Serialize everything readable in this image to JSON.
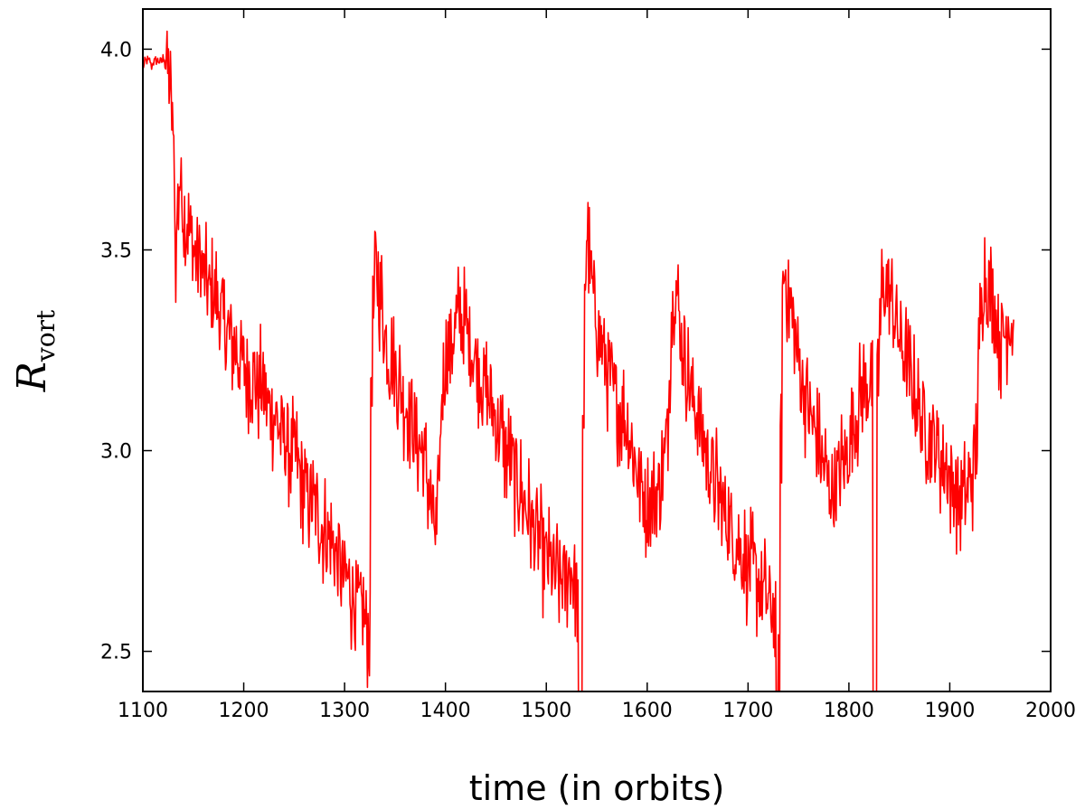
{
  "chart_data": {
    "type": "line",
    "title": "",
    "xlabel": "time (in orbits)",
    "ylabel": "R",
    "ylabel_subscript": "vort",
    "xlim": [
      1100,
      2000
    ],
    "ylim": [
      2.4,
      4.1
    ],
    "x_ticks": [
      1100,
      1200,
      1300,
      1400,
      1500,
      1600,
      1700,
      1800,
      1900,
      2000
    ],
    "x_tick_labels": [
      "1100",
      "1200",
      "1300",
      "1400",
      "1500",
      "1600",
      "1700",
      "1800",
      "1900",
      "2000"
    ],
    "y_ticks": [
      2.5,
      3.0,
      3.5,
      4.0
    ],
    "y_tick_labels": [
      "2.5",
      "3.0",
      "3.5",
      "4.0"
    ],
    "grid": false,
    "series": [
      {
        "color": "#ff0000",
        "x_start": 1100,
        "x_step": 2,
        "y_center": [
          3.96,
          3.97,
          3.97,
          3.97,
          3.96,
          3.97,
          3.97,
          3.97,
          3.97,
          3.97,
          3.98,
          3.99,
          3.95,
          3.92,
          3.86,
          3.72,
          3.5,
          3.6,
          3.68,
          3.64,
          3.6,
          3.56,
          3.58,
          3.54,
          3.52,
          3.5,
          3.49,
          3.49,
          3.48,
          3.45,
          3.43,
          3.41,
          3.4,
          3.39,
          3.39,
          3.39,
          3.38,
          3.36,
          3.35,
          3.33,
          3.31,
          3.3,
          3.29,
          3.28,
          3.27,
          3.25,
          3.25,
          3.24,
          3.23,
          3.22,
          3.22,
          3.2,
          3.2,
          3.2,
          3.19,
          3.18,
          3.16,
          3.16,
          3.16,
          3.15,
          3.14,
          3.13,
          3.11,
          3.1,
          3.1,
          3.09,
          3.08,
          3.06,
          3.05,
          3.04,
          3.03,
          3.03,
          3.01,
          3.0,
          2.99,
          2.98,
          2.97,
          2.95,
          2.94,
          2.92,
          2.9,
          2.89,
          2.88,
          2.87,
          2.86,
          2.85,
          2.84,
          2.83,
          2.82,
          2.81,
          2.8,
          2.79,
          2.78,
          2.77,
          2.76,
          2.74,
          2.73,
          2.72,
          2.71,
          2.69,
          2.68,
          2.68,
          2.66,
          2.65,
          2.64,
          2.63,
          2.62,
          2.6,
          2.6,
          2.59,
          2.57,
          2.56,
          2.55,
          3.2,
          3.35,
          3.45,
          3.45,
          3.4,
          3.37,
          3.33,
          3.28,
          3.25,
          3.23,
          3.22,
          3.2,
          3.19,
          3.17,
          3.16,
          3.15,
          3.13,
          3.12,
          3.11,
          3.09,
          3.08,
          3.06,
          3.04,
          3.03,
          3.01,
          3.0,
          2.98,
          2.95,
          2.92,
          2.89,
          2.85,
          2.82,
          2.78,
          2.84,
          3.0,
          3.15,
          3.2,
          3.22,
          3.24,
          3.26,
          3.28,
          3.3,
          3.31,
          3.32,
          3.33,
          3.32,
          3.31,
          3.3,
          3.28,
          3.27,
          3.25,
          3.24,
          3.22,
          3.21,
          3.19,
          3.18,
          3.16,
          3.15,
          3.13,
          3.12,
          3.1,
          3.09,
          3.07,
          3.06,
          3.04,
          3.03,
          3.01,
          3.0,
          2.98,
          2.97,
          2.96,
          2.94,
          2.93,
          2.91,
          2.9,
          2.88,
          2.87,
          2.85,
          2.84,
          2.83,
          2.81,
          2.8,
          2.78,
          2.77,
          2.76,
          2.74,
          2.73,
          2.72,
          2.71,
          2.7,
          2.7,
          2.69,
          2.69,
          2.68,
          2.68,
          2.68,
          2.68,
          2.7,
          2.7,
          2.7,
          2.7,
          2.68,
          2.65,
          2.4,
          2.4,
          3.0,
          3.45,
          3.55,
          3.47,
          3.42,
          3.38,
          3.35,
          3.32,
          3.29,
          3.26,
          3.24,
          3.22,
          3.2,
          3.18,
          3.16,
          3.14,
          3.13,
          3.12,
          3.11,
          3.1,
          3.09,
          3.07,
          3.05,
          3.03,
          3.01,
          2.99,
          2.97,
          2.95,
          2.93,
          2.91,
          2.89,
          2.87,
          2.86,
          2.85,
          2.86,
          2.87,
          2.88,
          2.9,
          2.92,
          2.94,
          2.96,
          3.0,
          3.1,
          3.25,
          3.35,
          3.42,
          3.4,
          3.35,
          3.31,
          3.27,
          3.24,
          3.21,
          3.18,
          3.16,
          3.14,
          3.12,
          3.1,
          3.08,
          3.06,
          3.04,
          3.02,
          3.0,
          2.98,
          2.96,
          2.94,
          2.92,
          2.91,
          2.89,
          2.88,
          2.86,
          2.85,
          2.84,
          2.82,
          2.81,
          2.79,
          2.78,
          2.77,
          2.76,
          2.75,
          2.74,
          2.73,
          2.72,
          2.71,
          2.7,
          2.7,
          2.69,
          2.68,
          2.67,
          2.66,
          2.65,
          2.64,
          2.63,
          2.62,
          2.61,
          2.6,
          2.58,
          2.4,
          2.45,
          3.0,
          3.4,
          3.45,
          3.42,
          3.38,
          3.35,
          3.31,
          3.28,
          3.25,
          3.22,
          3.19,
          3.16,
          3.14,
          3.12,
          3.1,
          3.08,
          3.06,
          3.04,
          3.02,
          3.0,
          2.98,
          2.96,
          2.95,
          2.93,
          2.92,
          2.91,
          2.91,
          2.92,
          2.93,
          2.94,
          2.96,
          2.97,
          2.98,
          3.0,
          3.02,
          3.04,
          3.06,
          3.08,
          3.1,
          3.12,
          3.13,
          3.15,
          3.16,
          3.17,
          3.18,
          3.18,
          2.4,
          2.4,
          3.15,
          3.3,
          3.38,
          3.4,
          3.42,
          3.4,
          3.38,
          3.36,
          3.34,
          3.32,
          3.3,
          3.28,
          3.26,
          3.24,
          3.22,
          3.2,
          3.18,
          3.16,
          3.14,
          3.12,
          3.1,
          3.09,
          3.08,
          3.07,
          3.06,
          3.05,
          3.04,
          3.03,
          3.02,
          3.01,
          3.0,
          2.99,
          2.98,
          2.97,
          2.96,
          2.94,
          2.93,
          2.92,
          2.91,
          2.9,
          2.89,
          2.89,
          2.88,
          2.88,
          2.89,
          2.91,
          2.93,
          2.95,
          2.98,
          3.05,
          3.2,
          3.35,
          3.42,
          3.44,
          3.42,
          3.4,
          3.38,
          3.36,
          3.34,
          3.32,
          3.3,
          3.28,
          3.28,
          3.3,
          3.32,
          3.34,
          3.32,
          3.3
        ]
      }
    ]
  }
}
